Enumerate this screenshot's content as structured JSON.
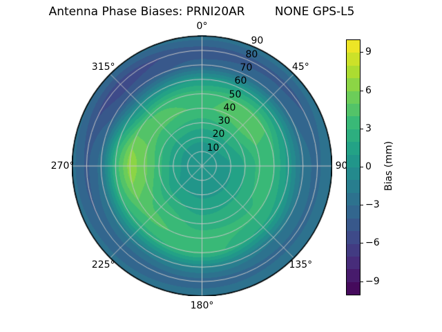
{
  "title": "Antenna Phase Biases: PRNI20AR        NONE GPS-L5",
  "chart_data": {
    "type": "heatmap",
    "subtype": "polar_filled_contour",
    "title": "Antenna Phase Biases: PRNI20AR        NONE GPS-L5",
    "angular_ticks": [
      {
        "deg": 0,
        "label": "0°"
      },
      {
        "deg": 45,
        "label": "45°"
      },
      {
        "deg": 90,
        "label": "90"
      },
      {
        "deg": 135,
        "label": "135°"
      },
      {
        "deg": 180,
        "label": "180°"
      },
      {
        "deg": 225,
        "label": "225°"
      },
      {
        "deg": 270,
        "label": "270°"
      },
      {
        "deg": 315,
        "label": "315°"
      }
    ],
    "radial_ticks": [
      "10",
      "20",
      "30",
      "40",
      "50",
      "60",
      "70",
      "80",
      "90"
    ],
    "radial_tick_values": [
      10,
      20,
      30,
      40,
      50,
      60,
      70,
      80,
      90
    ],
    "radial_max": 90,
    "radial_label_angle_deg": 22.5,
    "grid_on": true,
    "grid_color": "#c6c6c6",
    "outline_color": "#000000",
    "grid": {
      "azimuth_deg": [
        0,
        45,
        90,
        135,
        180,
        225,
        270,
        315
      ],
      "zenith_deg": [
        0,
        10,
        20,
        30,
        40,
        50,
        60,
        70,
        80,
        90
      ],
      "bias_mm": [
        [
          0.5,
          0.6,
          1.2,
          2.6,
          3.9,
          3.6,
          0.8,
          -3.6,
          -4.6,
          -2.4
        ],
        [
          0.5,
          0.6,
          1.5,
          3.0,
          4.8,
          4.4,
          1.2,
          -3.2,
          -4.4,
          -2.2
        ],
        [
          0.5,
          0.5,
          1.0,
          2.1,
          3.4,
          3.0,
          0.6,
          -2.6,
          -3.3,
          -1.9
        ],
        [
          0.5,
          0.4,
          0.8,
          1.8,
          2.9,
          3.1,
          1.8,
          -1.8,
          -3.4,
          -2.0
        ],
        [
          0.5,
          0.4,
          0.8,
          1.6,
          2.6,
          3.5,
          3.4,
          -0.8,
          -3.7,
          -2.2
        ],
        [
          0.5,
          0.5,
          1.0,
          2.3,
          3.7,
          4.3,
          2.6,
          -1.6,
          -3.9,
          -2.4
        ],
        [
          0.5,
          0.6,
          1.5,
          3.4,
          5.4,
          6.6,
          3.2,
          -2.6,
          -4.3,
          -2.6
        ],
        [
          0.5,
          0.6,
          1.3,
          2.9,
          4.4,
          3.9,
          -0.2,
          -4.6,
          -5.6,
          -2.8
        ]
      ]
    },
    "colorbar": {
      "label": "Bias (mm)",
      "vmin": -10,
      "vmax": 10,
      "n_bands": 20,
      "tick_values": [
        9,
        6,
        3,
        0,
        -3,
        -6,
        -9
      ],
      "tick_labels": [
        "9",
        "6",
        "3",
        "0",
        "−3",
        "−6",
        "−9"
      ],
      "colormap": "viridis",
      "colormap_stops": [
        [
          0.0,
          "#440154"
        ],
        [
          0.111,
          "#482878"
        ],
        [
          0.222,
          "#3e4989"
        ],
        [
          0.333,
          "#31688e"
        ],
        [
          0.444,
          "#26828e"
        ],
        [
          0.556,
          "#1f9e89"
        ],
        [
          0.667,
          "#35b779"
        ],
        [
          0.778,
          "#6ece58"
        ],
        [
          0.889,
          "#b5de2b"
        ],
        [
          1.0,
          "#fde725"
        ]
      ]
    }
  }
}
